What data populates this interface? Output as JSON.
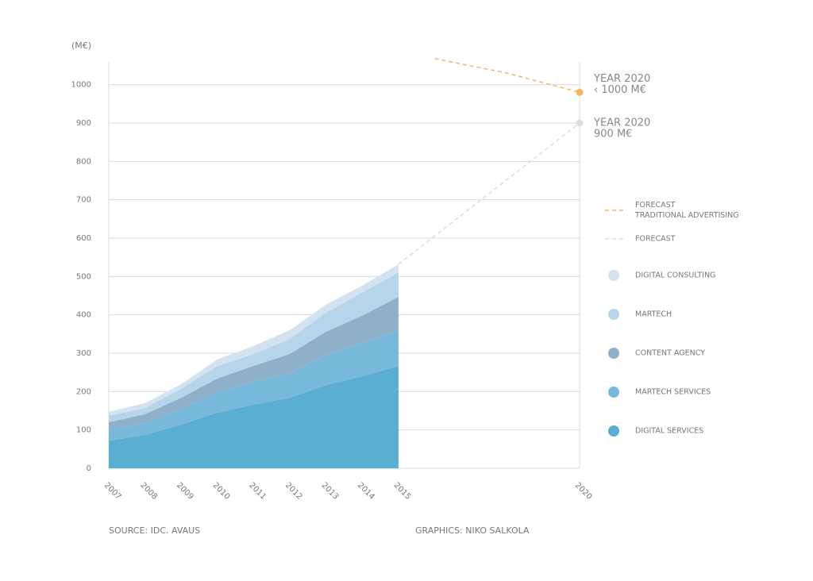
{
  "chart_data": {
    "type": "area",
    "stacked": true,
    "y_label": "(M€)",
    "source": "SOURCE: IDC. AVAUS",
    "credit": "GRAPHICS: NIKO SALKOLA",
    "x": [
      2007,
      2008,
      2009,
      2010,
      2011,
      2012,
      2013,
      2014,
      2015
    ],
    "xlim": [
      2007,
      2020
    ],
    "xticks": [
      2007,
      2008,
      2009,
      2010,
      2011,
      2012,
      2013,
      2014,
      2015,
      2020
    ],
    "ylim": [
      0,
      1080
    ],
    "yticks": [
      0,
      100,
      200,
      300,
      400,
      500,
      600,
      700,
      800,
      900,
      1000
    ],
    "grid": true,
    "series": [
      {
        "name": "DIGITAL SERVICES",
        "color": "#5aaed1",
        "values": [
          72,
          87,
          114,
          145,
          166,
          184,
          217,
          240,
          267
        ]
      },
      {
        "name": "MARTECH SERVICES",
        "color": "#78b9db",
        "values": [
          29,
          31,
          41,
          54,
          60,
          64,
          79,
          87,
          93
        ]
      },
      {
        "name": "CONTENT AGENCY",
        "color": "#8fb0c9",
        "values": [
          19,
          23,
          29,
          35,
          41,
          50,
          60,
          71,
          87
        ]
      },
      {
        "name": "MARTECH",
        "color": "#b6d5ea",
        "values": [
          17,
          16,
          23,
          33,
          31,
          39,
          50,
          60,
          64
        ]
      },
      {
        "name": "DIGITAL CONSULTING",
        "color": "#d2e2ef",
        "values": [
          10,
          13,
          12,
          17,
          21,
          23,
          21,
          18,
          21
        ]
      }
    ],
    "forecasts": [
      {
        "name": "FORECAST TRADITIONAL ADVERTISING",
        "color": "#f6b75c",
        "x": [
          2016,
          2018,
          2020
        ],
        "values": [
          1068,
          1030,
          980
        ],
        "annotation": [
          "YEAR 2020",
          "‹ 1000 M€"
        ]
      },
      {
        "name": "FORECAST",
        "color": "#d6dde3",
        "x": [
          2015,
          2020
        ],
        "values": [
          532,
          900
        ],
        "annotation": [
          "YEAR 2020",
          "900 M€"
        ]
      }
    ]
  }
}
